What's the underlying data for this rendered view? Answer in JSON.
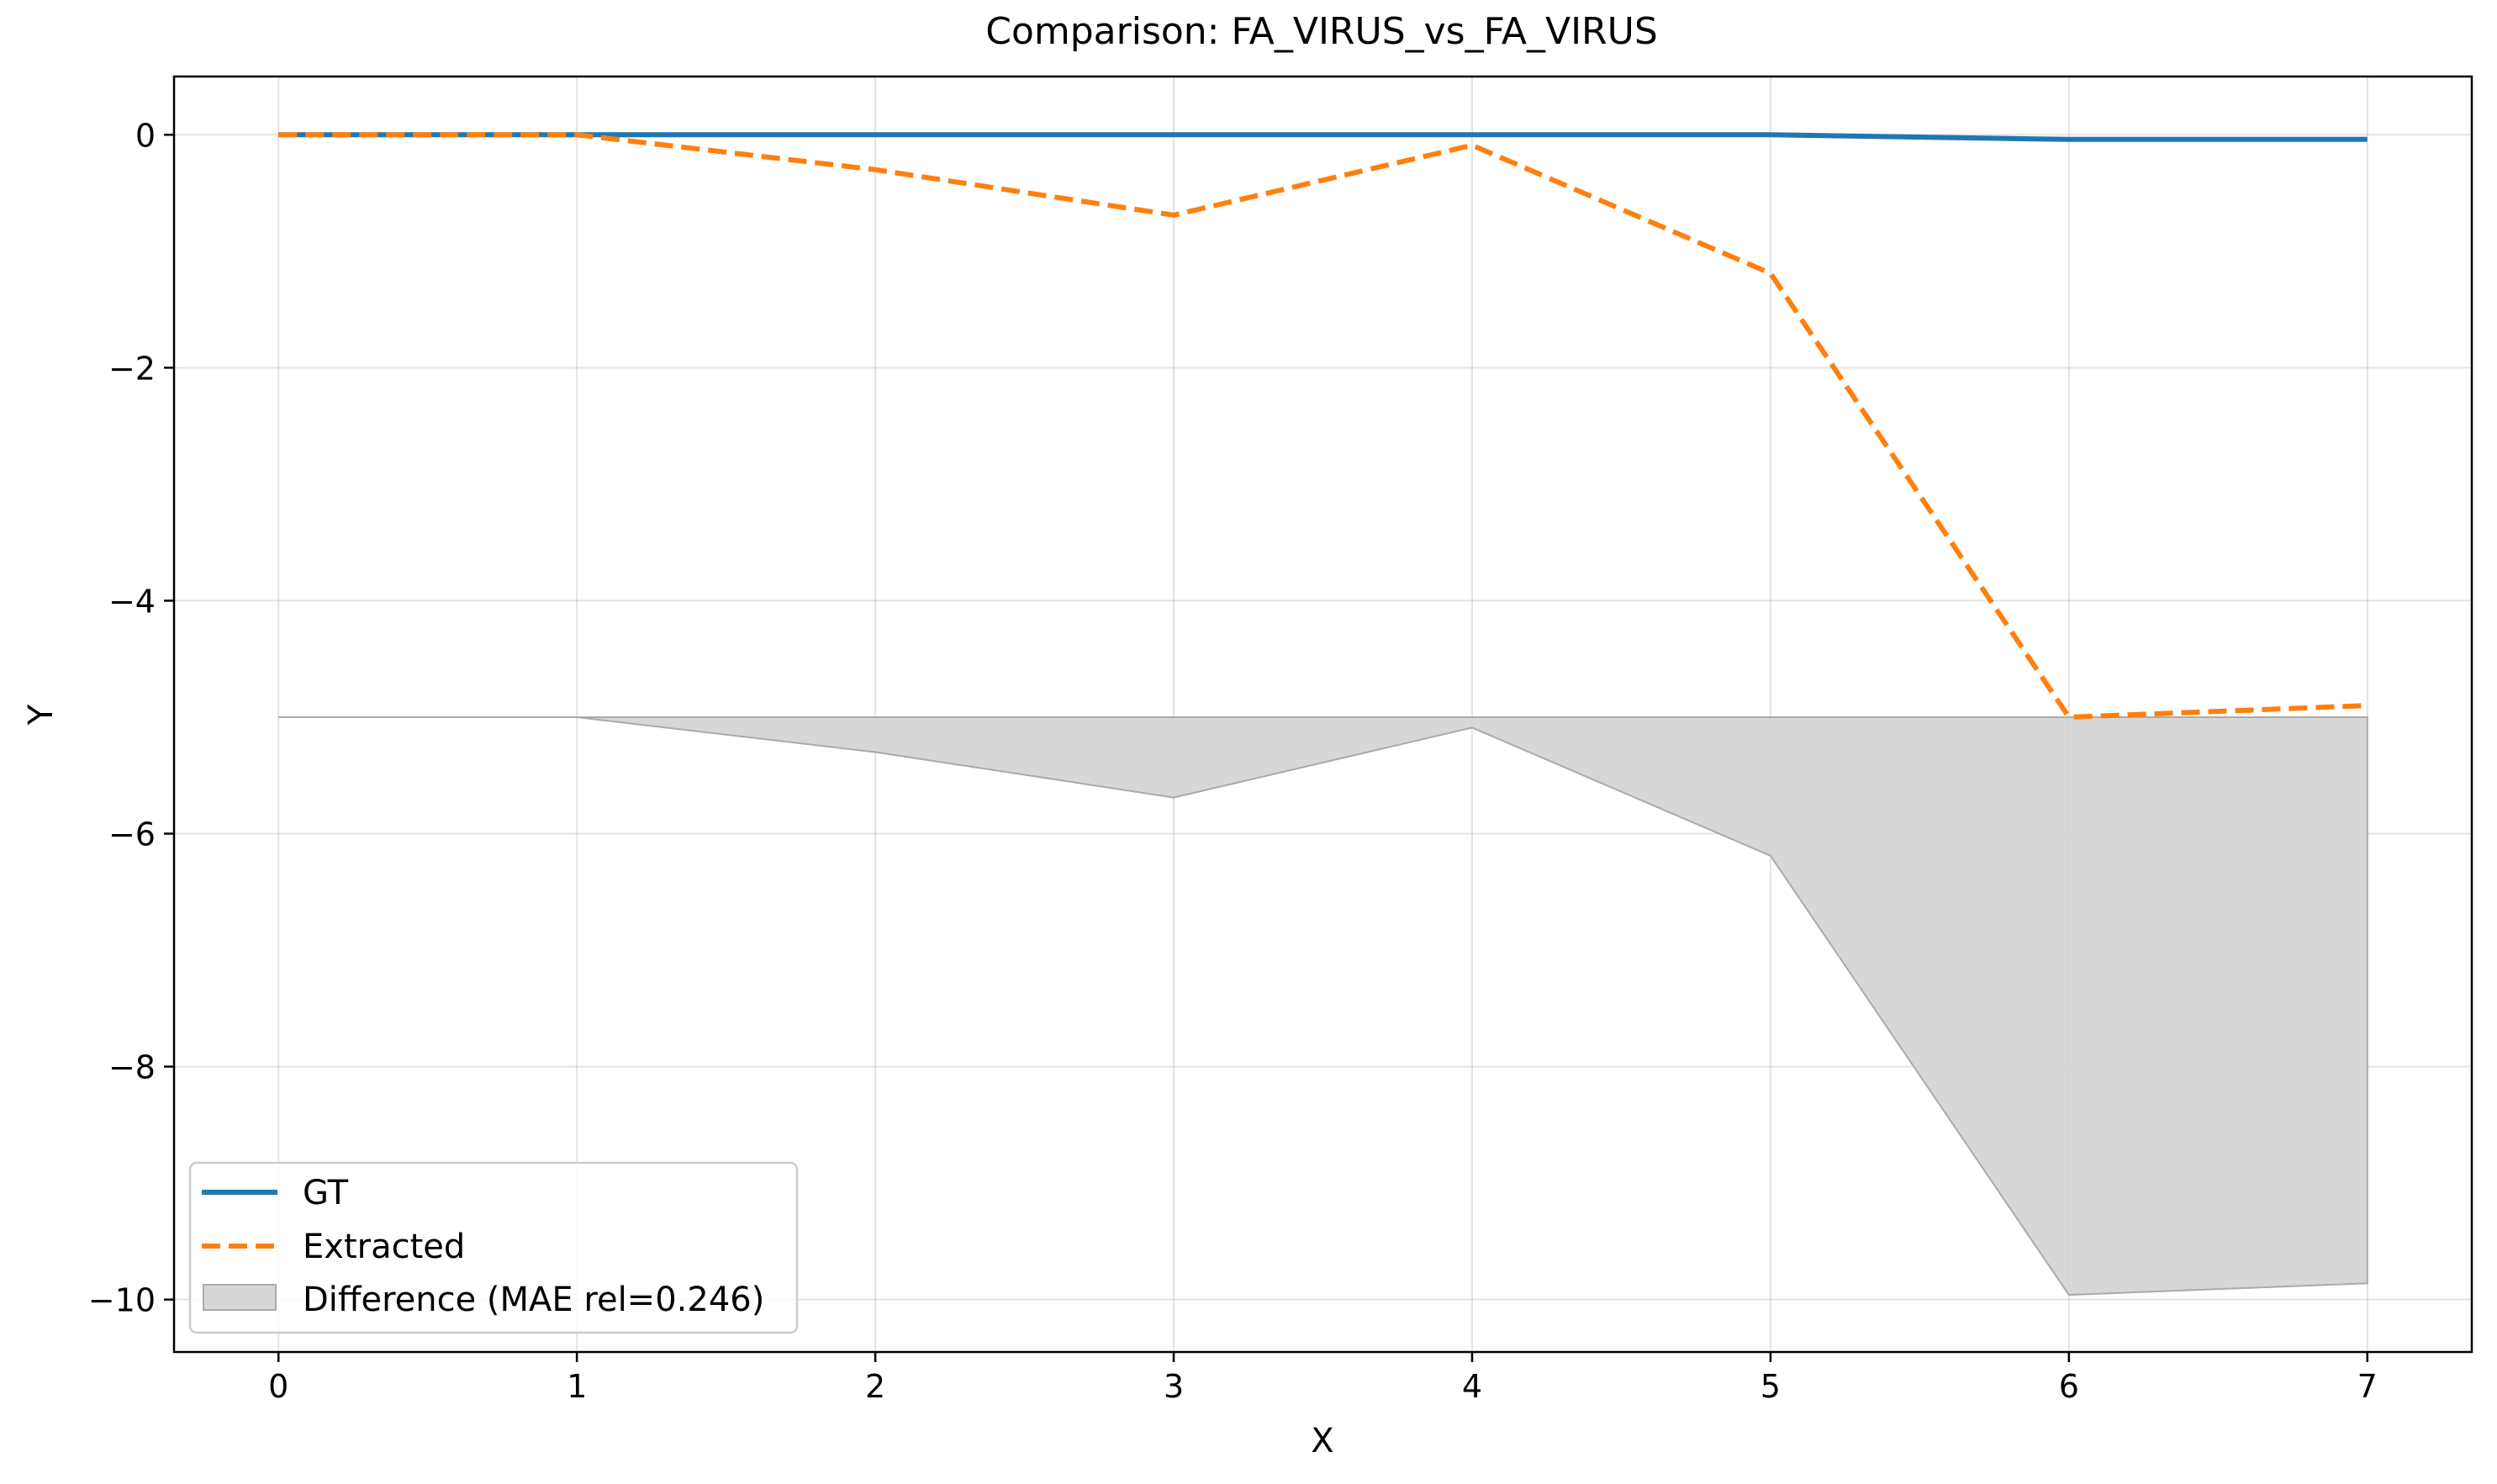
{
  "chart_data": {
    "type": "line",
    "title": "Comparison: FA_VIRUS_vs_FA_VIRUS",
    "xlabel": "X",
    "ylabel": "Y",
    "xlim": [
      -0.35,
      7.35
    ],
    "ylim": [
      -10.45,
      0.5
    ],
    "xticks": [
      0,
      1,
      2,
      3,
      4,
      5,
      6,
      7
    ],
    "yticks": [
      0,
      -2,
      -4,
      -6,
      -8,
      -10
    ],
    "grid": true,
    "legend_position": "lower-left",
    "x": [
      0,
      1,
      2,
      3,
      4,
      5,
      6,
      7
    ],
    "series": [
      {
        "name": "GT",
        "style": "solid",
        "color": "#1f77b4",
        "values": [
          0,
          0,
          0,
          0,
          0,
          0,
          -0.04,
          -0.04
        ]
      },
      {
        "name": "Extracted",
        "style": "dashed",
        "color": "#ff7f0e",
        "values": [
          0,
          0,
          -0.3,
          -0.69,
          -0.09,
          -1.19,
          -5.0,
          -4.9
        ]
      }
    ],
    "difference": {
      "name": "Difference (MAE rel=0.246)",
      "color": "#d3d3d3",
      "baseline": -5,
      "values": [
        -5.0,
        -5.0,
        -5.3,
        -5.69,
        -5.09,
        -6.19,
        -9.96,
        -9.86
      ]
    }
  }
}
